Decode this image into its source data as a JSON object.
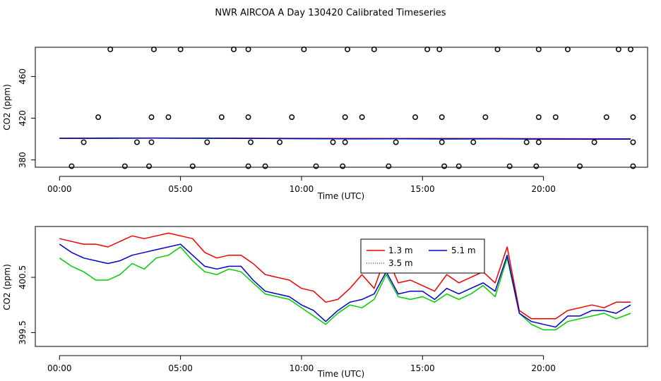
{
  "title": "NWR AIRCOA A  Day 130420  Calibrated Timeseries",
  "colors": {
    "s1": "#ee0000",
    "s2": "#00cc00",
    "s3": "#0000cc"
  },
  "chart_data": [
    {
      "type": "line",
      "ylabel": "CO2 (ppm)",
      "xlabel": "Time (UTC)",
      "xlim": [
        -1,
        24.3
      ],
      "ylim": [
        373,
        488
      ],
      "xticks": [
        0,
        5,
        10,
        15,
        20
      ],
      "xtick_labels": [
        "00:00",
        "05:00",
        "10:00",
        "15:00",
        "20:00"
      ],
      "yticks": [
        380,
        420,
        460
      ],
      "ytick_labels": [
        "380",
        "420",
        "460"
      ],
      "series": [
        {
          "key": "s1",
          "x": [
            0,
            2,
            4,
            6,
            8,
            10,
            12,
            14,
            16,
            18,
            20,
            22,
            23.6
          ],
          "values": [
            400.8,
            401.0,
            401.0,
            400.9,
            400.8,
            400.7,
            400.6,
            400.5,
            400.5,
            400.6,
            400.4,
            400.3,
            400.2
          ]
        },
        {
          "key": "s2",
          "x": [
            0,
            2,
            4,
            6,
            8,
            10,
            12,
            14,
            16,
            18,
            20,
            22,
            23.6
          ],
          "values": [
            400.6,
            400.7,
            400.9,
            400.7,
            400.5,
            400.3,
            400.1,
            400.2,
            400.0,
            400.1,
            399.9,
            399.8,
            399.9
          ]
        },
        {
          "key": "s3",
          "x": [
            0,
            2,
            4,
            6,
            8,
            10,
            12,
            14,
            16,
            18,
            20,
            22,
            23.6
          ],
          "values": [
            400.7,
            400.8,
            400.9,
            400.8,
            400.6,
            400.4,
            400.2,
            400.3,
            400.1,
            400.2,
            400.0,
            399.9,
            400.0
          ]
        }
      ],
      "markers": [
        {
          "x": 2.1,
          "y": 486
        },
        {
          "x": 3.9,
          "y": 486
        },
        {
          "x": 5.0,
          "y": 486
        },
        {
          "x": 7.2,
          "y": 486
        },
        {
          "x": 7.8,
          "y": 486
        },
        {
          "x": 10.1,
          "y": 486
        },
        {
          "x": 11.9,
          "y": 486
        },
        {
          "x": 13.0,
          "y": 486
        },
        {
          "x": 15.2,
          "y": 486
        },
        {
          "x": 15.7,
          "y": 486
        },
        {
          "x": 18.1,
          "y": 486
        },
        {
          "x": 19.8,
          "y": 486
        },
        {
          "x": 21.0,
          "y": 486
        },
        {
          "x": 23.1,
          "y": 486
        },
        {
          "x": 23.6,
          "y": 486
        },
        {
          "x": 1.6,
          "y": 421
        },
        {
          "x": 3.8,
          "y": 421
        },
        {
          "x": 4.5,
          "y": 421
        },
        {
          "x": 6.7,
          "y": 421
        },
        {
          "x": 7.8,
          "y": 421
        },
        {
          "x": 9.6,
          "y": 421
        },
        {
          "x": 11.8,
          "y": 421
        },
        {
          "x": 12.5,
          "y": 421
        },
        {
          "x": 14.7,
          "y": 421
        },
        {
          "x": 15.8,
          "y": 421
        },
        {
          "x": 17.6,
          "y": 421
        },
        {
          "x": 19.8,
          "y": 421
        },
        {
          "x": 20.5,
          "y": 421
        },
        {
          "x": 22.6,
          "y": 421
        },
        {
          "x": 23.7,
          "y": 421
        },
        {
          "x": 1.0,
          "y": 397
        },
        {
          "x": 3.2,
          "y": 397
        },
        {
          "x": 3.8,
          "y": 397
        },
        {
          "x": 6.1,
          "y": 397
        },
        {
          "x": 7.9,
          "y": 397
        },
        {
          "x": 9.1,
          "y": 397
        },
        {
          "x": 11.3,
          "y": 397
        },
        {
          "x": 11.8,
          "y": 397
        },
        {
          "x": 13.9,
          "y": 397
        },
        {
          "x": 15.8,
          "y": 397
        },
        {
          "x": 17.1,
          "y": 397
        },
        {
          "x": 19.3,
          "y": 397
        },
        {
          "x": 19.8,
          "y": 397
        },
        {
          "x": 22.1,
          "y": 397
        },
        {
          "x": 23.7,
          "y": 397
        },
        {
          "x": 0.5,
          "y": 374
        },
        {
          "x": 2.7,
          "y": 374
        },
        {
          "x": 3.7,
          "y": 374
        },
        {
          "x": 5.5,
          "y": 374
        },
        {
          "x": 7.8,
          "y": 374
        },
        {
          "x": 8.5,
          "y": 374
        },
        {
          "x": 10.6,
          "y": 374
        },
        {
          "x": 11.7,
          "y": 374
        },
        {
          "x": 13.6,
          "y": 374
        },
        {
          "x": 15.9,
          "y": 374
        },
        {
          "x": 16.5,
          "y": 374
        },
        {
          "x": 18.6,
          "y": 374
        },
        {
          "x": 19.7,
          "y": 374
        },
        {
          "x": 21.5,
          "y": 374
        },
        {
          "x": 23.7,
          "y": 374
        }
      ]
    },
    {
      "type": "line",
      "ylabel": "CO2 (ppm)",
      "xlabel": "Time (UTC)",
      "xlim": [
        -1,
        24.3
      ],
      "ylim": [
        399.25,
        401.42
      ],
      "xticks": [
        0,
        5,
        10,
        15,
        20
      ],
      "xtick_labels": [
        "00:00",
        "05:00",
        "10:00",
        "15:00",
        "20:00"
      ],
      "yticks": [
        399.5,
        400.5
      ],
      "ytick_labels": [
        "399.5",
        "400.5"
      ],
      "legend": {
        "entries": [
          {
            "key": "s1",
            "label": "1.3 m",
            "style": "solid"
          },
          {
            "key": "s3",
            "label": "5.1 m",
            "style": "solid"
          },
          {
            "key": "s2",
            "label": "3.5 m",
            "style": "dotted"
          }
        ]
      },
      "series": [
        {
          "key": "s1",
          "x": [
            0,
            0.5,
            1,
            1.5,
            2,
            2.5,
            3,
            3.5,
            4,
            4.5,
            5,
            5.5,
            6,
            6.5,
            7,
            7.5,
            8,
            8.5,
            9,
            9.5,
            10,
            10.5,
            11,
            11.5,
            12,
            12.5,
            13,
            13.5,
            14,
            14.5,
            15,
            15.5,
            16,
            16.5,
            17,
            17.5,
            18,
            18.5,
            19,
            19.5,
            20,
            20.5,
            21,
            21.5,
            22,
            22.5,
            23,
            23.6
          ],
          "values": [
            401.2,
            401.15,
            401.1,
            401.1,
            401.05,
            401.15,
            401.25,
            401.2,
            401.25,
            401.3,
            401.25,
            401.2,
            400.95,
            400.85,
            400.9,
            400.9,
            400.75,
            400.55,
            400.5,
            400.45,
            400.3,
            400.25,
            400.05,
            400.1,
            400.3,
            400.55,
            400.3,
            400.9,
            400.4,
            400.45,
            400.35,
            400.25,
            400.55,
            400.4,
            400.5,
            400.6,
            400.4,
            401.05,
            399.9,
            399.75,
            399.75,
            399.75,
            399.9,
            399.95,
            400.0,
            399.95,
            400.05,
            400.05
          ]
        },
        {
          "key": "s2",
          "x": [
            0,
            0.5,
            1,
            1.5,
            2,
            2.5,
            3,
            3.5,
            4,
            4.5,
            5,
            5.5,
            6,
            6.5,
            7,
            7.5,
            8,
            8.5,
            9,
            9.5,
            10,
            10.5,
            11,
            11.5,
            12,
            12.5,
            13,
            13.5,
            14,
            14.5,
            15,
            15.5,
            16,
            16.5,
            17,
            17.5,
            18,
            18.5,
            19,
            19.5,
            20,
            20.5,
            21,
            21.5,
            22,
            22.5,
            23,
            23.6
          ],
          "values": [
            400.85,
            400.7,
            400.6,
            400.45,
            400.45,
            400.55,
            400.75,
            400.65,
            400.85,
            400.9,
            401.05,
            400.8,
            400.6,
            400.55,
            400.65,
            400.6,
            400.4,
            400.2,
            400.15,
            400.1,
            399.95,
            399.8,
            399.65,
            399.85,
            400.0,
            399.95,
            400.1,
            400.55,
            400.15,
            400.1,
            400.15,
            400.05,
            400.2,
            400.1,
            400.2,
            400.35,
            400.15,
            400.85,
            399.85,
            399.65,
            399.55,
            399.55,
            399.7,
            399.75,
            399.8,
            399.85,
            399.75,
            399.85
          ]
        },
        {
          "key": "s3",
          "x": [
            0,
            0.5,
            1,
            1.5,
            2,
            2.5,
            3,
            3.5,
            4,
            4.5,
            5,
            5.5,
            6,
            6.5,
            7,
            7.5,
            8,
            8.5,
            9,
            9.5,
            10,
            10.5,
            11,
            11.5,
            12,
            12.5,
            13,
            13.5,
            14,
            14.5,
            15,
            15.5,
            16,
            16.5,
            17,
            17.5,
            18,
            18.5,
            19,
            19.5,
            20,
            20.5,
            21,
            21.5,
            22,
            22.5,
            23,
            23.6
          ],
          "values": [
            401.1,
            400.95,
            400.85,
            400.8,
            400.75,
            400.8,
            400.9,
            400.95,
            401.0,
            401.05,
            401.1,
            400.9,
            400.7,
            400.65,
            400.7,
            400.7,
            400.45,
            400.25,
            400.2,
            400.15,
            400.0,
            399.9,
            399.7,
            399.9,
            400.05,
            400.1,
            400.2,
            400.6,
            400.2,
            400.25,
            400.25,
            400.1,
            400.3,
            400.2,
            400.3,
            400.4,
            400.25,
            400.9,
            399.85,
            399.7,
            399.65,
            399.6,
            399.8,
            399.8,
            399.9,
            399.9,
            399.85,
            400.0
          ]
        }
      ]
    }
  ]
}
